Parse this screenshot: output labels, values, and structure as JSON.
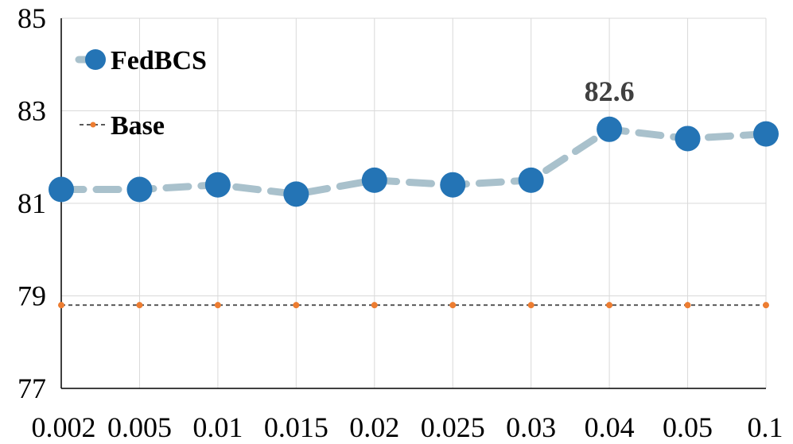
{
  "chart_data": {
    "type": "line",
    "title": "",
    "xlabel": "",
    "ylabel": "",
    "categories": [
      "0.002",
      "0.005",
      "0.01",
      "0.015",
      "0.02",
      "0.025",
      "0.03",
      "0.04",
      "0.05",
      "0.1"
    ],
    "ylim": [
      77,
      85
    ],
    "yticks": [
      "77",
      "79",
      "81",
      "83",
      "85"
    ],
    "grid": true,
    "legend_position": "top-left",
    "series": [
      {
        "name": "FedBCS",
        "values": [
          81.3,
          81.3,
          81.4,
          81.2,
          81.5,
          81.4,
          81.5,
          82.6,
          82.4,
          82.5
        ],
        "marker_color": "#2474b5",
        "line_color": "#a9c1cc",
        "line_style": "dashed"
      },
      {
        "name": "Base",
        "values": [
          78.8,
          78.8,
          78.8,
          78.8,
          78.8,
          78.8,
          78.8,
          78.8,
          78.8,
          78.8
        ],
        "marker_color": "#ed7d31",
        "line_color": "#595959",
        "line_style": "dashed"
      }
    ],
    "annotations": [
      {
        "series": "FedBCS",
        "category": "0.04",
        "text": "82.6"
      }
    ]
  }
}
